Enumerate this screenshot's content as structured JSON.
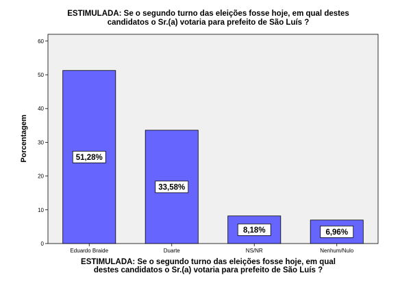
{
  "chart_data": {
    "type": "bar",
    "title_line1": "ESTIMULADA: Se o segundo turno das  eleições fosse hoje, em qual destes",
    "title_line2": "candidatos o  Sr.(a) votaria para prefeito de São Luís ?",
    "xlabel_line1": "ESTIMULADA: Se o segundo turno das  eleições fosse hoje, em qual",
    "xlabel_line2": "destes candidatos o  Sr.(a) votaria para prefeito de São Luís ?",
    "ylabel": "Porcentagem",
    "categories": [
      "Eduardo Braide",
      "Duarte",
      "NS/NR",
      "Nenhum/Nulo"
    ],
    "values": [
      51.28,
      33.58,
      8.18,
      6.96
    ],
    "data_labels": [
      "51,28%",
      "33,58%",
      "8,18%",
      "6,96%"
    ],
    "yticks": [
      "0",
      "10",
      "20",
      "30",
      "40",
      "50",
      "60"
    ],
    "ylim": [
      0,
      62
    ],
    "grid": false,
    "legend": "none",
    "colors": {
      "bar_fill": "#6666ff",
      "bar_stroke": "#000000",
      "plot_background": "#f0f0f0",
      "page_background": "#ffffff"
    }
  }
}
